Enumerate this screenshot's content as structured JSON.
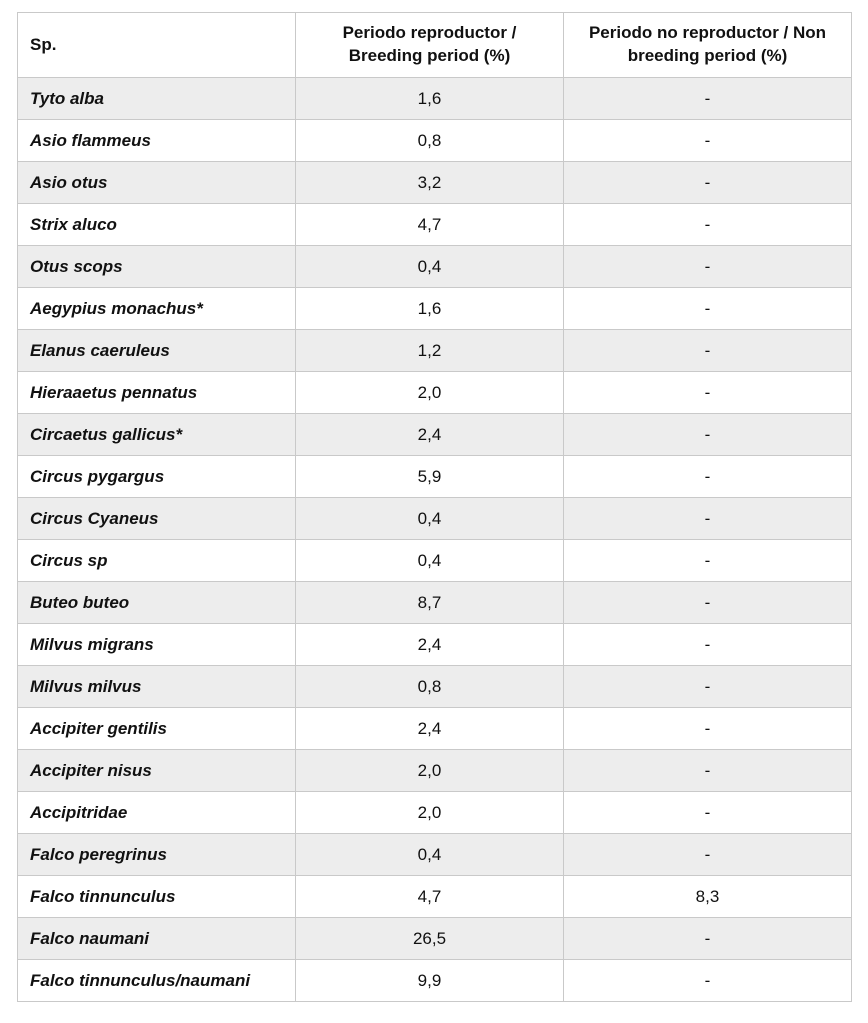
{
  "table": {
    "columns": [
      {
        "label": "Sp."
      },
      {
        "label": "Periodo reproductor / Breeding period (%)"
      },
      {
        "label": "Periodo no reproductor / Non breeding period (%)"
      }
    ],
    "rows": [
      {
        "species": "Tyto alba",
        "breeding": "1,6",
        "non_breeding": "-"
      },
      {
        "species": "Asio flammeus",
        "breeding": "0,8",
        "non_breeding": "-"
      },
      {
        "species": "Asio otus",
        "breeding": "3,2",
        "non_breeding": "-"
      },
      {
        "species": "Strix aluco",
        "breeding": "4,7",
        "non_breeding": "-"
      },
      {
        "species": "Otus scops",
        "breeding": "0,4",
        "non_breeding": "-"
      },
      {
        "species": "Aegypius monachus*",
        "breeding": "1,6",
        "non_breeding": "-"
      },
      {
        "species": "Elanus caeruleus",
        "breeding": "1,2",
        "non_breeding": "-"
      },
      {
        "species": "Hieraaetus pennatus",
        "breeding": "2,0",
        "non_breeding": "-"
      },
      {
        "species": "Circaetus gallicus*",
        "breeding": "2,4",
        "non_breeding": "-"
      },
      {
        "species": "Circus pygargus",
        "breeding": "5,9",
        "non_breeding": "-"
      },
      {
        "species": "Circus Cyaneus",
        "breeding": "0,4",
        "non_breeding": "-"
      },
      {
        "species": "Circus sp",
        "breeding": "0,4",
        "non_breeding": "-"
      },
      {
        "species": "Buteo buteo",
        "breeding": "8,7",
        "non_breeding": "-"
      },
      {
        "species": "Milvus migrans",
        "breeding": "2,4",
        "non_breeding": "-"
      },
      {
        "species": "Milvus milvus",
        "breeding": "0,8",
        "non_breeding": "-"
      },
      {
        "species": "Accipiter gentilis",
        "breeding": "2,4",
        "non_breeding": "-"
      },
      {
        "species": "Accipiter nisus",
        "breeding": "2,0",
        "non_breeding": "-"
      },
      {
        "species": "Accipitridae",
        "breeding": "2,0",
        "non_breeding": "-"
      },
      {
        "species": "Falco peregrinus",
        "breeding": "0,4",
        "non_breeding": "-"
      },
      {
        "species": "Falco tinnunculus",
        "breeding": "4,7",
        "non_breeding": "8,3"
      },
      {
        "species": "Falco naumani",
        "breeding": "26,5",
        "non_breeding": "-"
      },
      {
        "species": "Falco tinnunculus/naumani",
        "breeding": "9,9",
        "non_breeding": "-"
      }
    ],
    "colors": {
      "row_alt_background": "#ededed",
      "border": "#c9c9c9",
      "text": "#111111"
    }
  }
}
